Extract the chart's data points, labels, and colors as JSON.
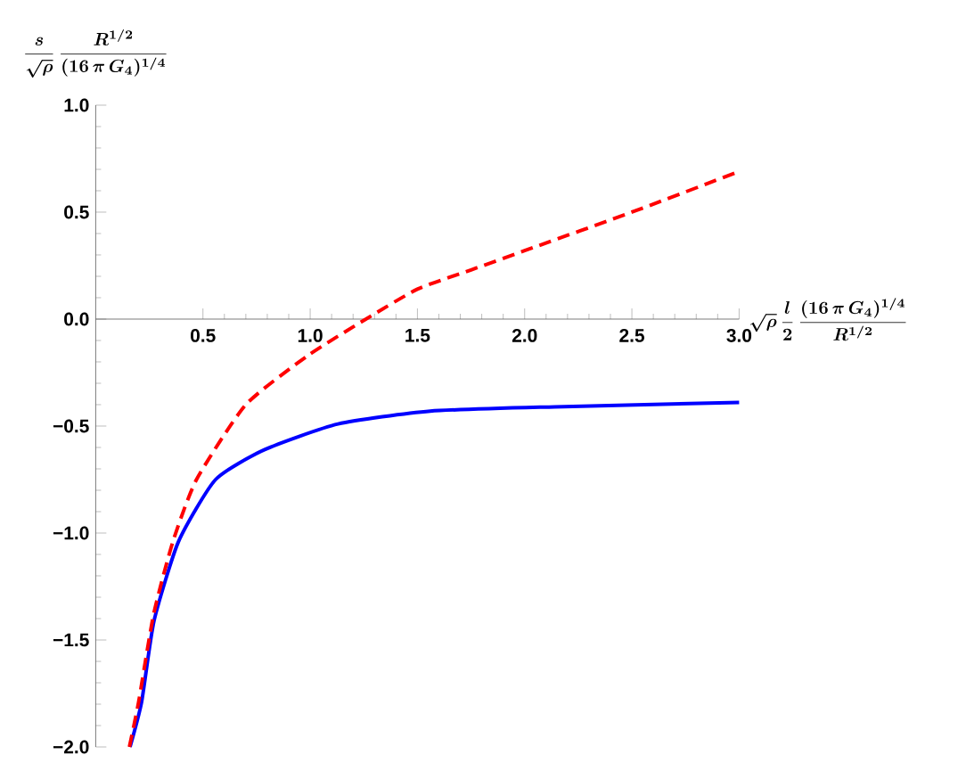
{
  "chart_data": {
    "type": "line",
    "xlabel": "\\sqrt{\\rho}\\,\\frac{l}{2}\\,\\frac{(16\\,\\pi\\,G_4)^{1/4}}{R^{1/2}}",
    "ylabel": "\\frac{s}{\\sqrt{\\rho}}\\,\\frac{R^{1/2}}{(16\\,\\pi\\,G_4)^{1/4}}",
    "xlim": [
      0,
      3
    ],
    "ylim": [
      -2,
      1
    ],
    "xticks": [
      0.5,
      {
        "value": 1,
        "label": "1.0"
      },
      1.5,
      {
        "value": 2,
        "label": "2.0"
      },
      2.5,
      {
        "value": 3,
        "label": "3.0"
      }
    ],
    "yticks": [
      {
        "value": -2,
        "label": "−2.0"
      },
      {
        "value": -1.5,
        "label": "−1.5"
      },
      {
        "value": -1,
        "label": "−1.0"
      },
      {
        "value": -0.5,
        "label": "−0.5"
      },
      {
        "value": 0,
        "label": "0.0"
      },
      {
        "value": 0.5,
        "label": "0.5"
      },
      {
        "value": 1,
        "label": "1.0"
      }
    ],
    "series": [
      {
        "color": "#0000ff",
        "line_style": "solid",
        "x": [
          0.16,
          0.214,
          0.272,
          0.386,
          0.559,
          0.788,
          1.13,
          1.56,
          2.14,
          3.0
        ],
        "values": [
          -2.0,
          -1.79,
          -1.41,
          -1.04,
          -0.75,
          -0.61,
          -0.49,
          -0.43,
          -0.41,
          -0.39
        ]
      },
      {
        "color": "#ff0000",
        "line_style": "dashed",
        "x": [
          0.157,
          0.2,
          0.27,
          0.36,
          0.47,
          0.7,
          0.99,
          1.26,
          1.5,
          1.75,
          2.0,
          2.5,
          3.0
        ],
        "values": [
          -2.0,
          -1.79,
          -1.38,
          -1.04,
          -0.75,
          -0.4,
          -0.17,
          0.0,
          0.14,
          0.23,
          0.32,
          0.5,
          0.69
        ]
      }
    ]
  }
}
